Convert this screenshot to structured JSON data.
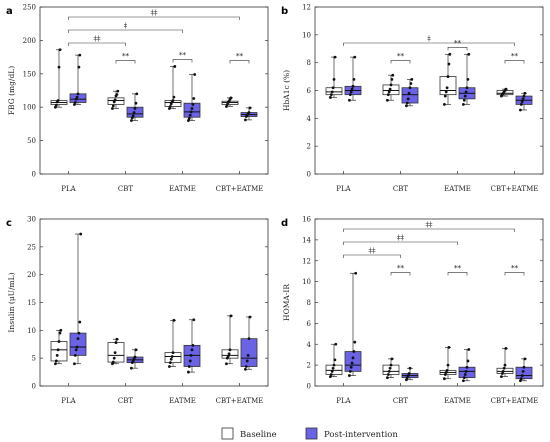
{
  "colors": {
    "baseline_fill": "#ffffff",
    "post_fill": "#6b63e6",
    "stroke": "#333333",
    "point": "#111111"
  },
  "legend": {
    "baseline_label": "Baseline",
    "post_label": "Post-intervention"
  },
  "chart_data": [
    {
      "type": "box",
      "panel": "a",
      "title": "",
      "ylabel": "FBG (mg/dL)",
      "ylim": [
        0,
        250
      ],
      "yticks": [
        0,
        50,
        100,
        150,
        200,
        250
      ],
      "categories": [
        "PLA",
        "CBT",
        "EATME",
        "CBT+EATME"
      ],
      "groups": [
        {
          "baseline": {
            "min": 100,
            "q1": 104,
            "median": 107,
            "q3": 110,
            "max": 186,
            "points": [
              100,
              103,
              108,
              110,
              160,
              186
            ]
          },
          "post": {
            "min": 104,
            "q1": 107,
            "median": 112,
            "q3": 120,
            "max": 178,
            "points": [
              104,
              107,
              112,
              115,
              120,
              160,
              178
            ]
          }
        },
        {
          "baseline": {
            "min": 98,
            "q1": 104,
            "median": 110,
            "q3": 114,
            "max": 124,
            "points": [
              98,
              102,
              108,
              111,
              117,
              119,
              124
            ]
          },
          "post": {
            "min": 80,
            "q1": 85,
            "median": 90,
            "q3": 100,
            "max": 120,
            "points": [
              80,
              84,
              87,
              92,
              98,
              106,
              120
            ]
          }
        },
        {
          "baseline": {
            "min": 98,
            "q1": 101,
            "median": 107,
            "q3": 110,
            "max": 161,
            "points": [
              98,
              101,
              105,
              108,
              110,
              115,
              161
            ]
          },
          "post": {
            "min": 80,
            "q1": 85,
            "median": 93,
            "q3": 106,
            "max": 149,
            "points": [
              80,
              83,
              88,
              93,
              98,
              104,
              113,
              149
            ]
          }
        },
        {
          "baseline": {
            "min": 101,
            "q1": 104,
            "median": 107,
            "q3": 109,
            "max": 114,
            "points": [
              101,
              104,
              107,
              109,
              112,
              114
            ]
          },
          "post": {
            "min": 81,
            "q1": 86,
            "median": 89,
            "q3": 92,
            "max": 99,
            "points": [
              81,
              86,
              88,
              90,
              92,
              99
            ]
          }
        }
      ],
      "annotations": [
        {
          "text": "‡‡",
          "from": "PLA",
          "to": "CBT+EATME",
          "level": 3
        },
        {
          "text": "‡",
          "from": "PLA",
          "to": "EATME",
          "level": 2
        },
        {
          "text": "‡‡",
          "from": "PLA",
          "to": "CBT",
          "level": 1
        },
        {
          "text": "**",
          "group": "CBT"
        },
        {
          "text": "**",
          "group": "EATME"
        },
        {
          "text": "**",
          "group": "CBT+EATME"
        }
      ]
    },
    {
      "type": "box",
      "panel": "b",
      "title": "",
      "ylabel": "HbA1c (%)",
      "ylim": [
        0,
        12
      ],
      "yticks": [
        0,
        2,
        4,
        6,
        8,
        10,
        12
      ],
      "categories": [
        "PLA",
        "CBT",
        "EATME",
        "CBT+EATME"
      ],
      "groups": [
        {
          "baseline": {
            "min": 5.5,
            "q1": 5.7,
            "median": 5.9,
            "q3": 6.2,
            "max": 8.4,
            "points": [
              5.5,
              5.7,
              5.9,
              6.2,
              6.8,
              8.4
            ]
          },
          "post": {
            "min": 5.3,
            "q1": 5.7,
            "median": 6.0,
            "q3": 6.3,
            "max": 8.4,
            "points": [
              5.3,
              5.7,
              5.9,
              6.1,
              6.3,
              6.8,
              8.4
            ]
          }
        },
        {
          "baseline": {
            "min": 5.3,
            "q1": 5.7,
            "median": 6.0,
            "q3": 6.4,
            "max": 7.1,
            "points": [
              5.3,
              5.7,
              5.9,
              6.1,
              6.4,
              6.8,
              7.1
            ]
          },
          "post": {
            "min": 4.9,
            "q1": 5.1,
            "median": 5.7,
            "q3": 6.2,
            "max": 6.8,
            "points": [
              4.9,
              5.1,
              5.4,
              5.8,
              6.2,
              6.5,
              6.8
            ]
          }
        },
        {
          "baseline": {
            "min": 5.0,
            "q1": 5.7,
            "median": 6.0,
            "q3": 7.0,
            "max": 8.6,
            "points": [
              5.0,
              5.6,
              5.9,
              6.2,
              7.0,
              7.9,
              8.6
            ]
          },
          "post": {
            "min": 5.0,
            "q1": 5.4,
            "median": 5.8,
            "q3": 6.2,
            "max": 8.6,
            "points": [
              5.0,
              5.3,
              5.6,
              5.9,
              6.2,
              6.8,
              8.6
            ]
          }
        },
        {
          "baseline": {
            "min": 5.6,
            "q1": 5.7,
            "median": 5.8,
            "q3": 6.0,
            "max": 6.1,
            "points": [
              5.6,
              5.7,
              5.8,
              5.9,
              6.0,
              6.1
            ]
          },
          "post": {
            "min": 4.6,
            "q1": 5.0,
            "median": 5.3,
            "q3": 5.6,
            "max": 5.8,
            "points": [
              4.6,
              5.0,
              5.2,
              5.4,
              5.6,
              5.8
            ]
          }
        }
      ],
      "annotations": [
        {
          "text": "‡",
          "from": "PLA",
          "to": "CBT+EATME",
          "level": 1
        },
        {
          "text": "**",
          "group": "CBT"
        },
        {
          "text": "**",
          "group": "EATME"
        },
        {
          "text": "**",
          "group": "CBT+EATME"
        }
      ]
    },
    {
      "type": "box",
      "panel": "c",
      "title": "",
      "ylabel": "Insulin (μU/mL)",
      "ylim": [
        0,
        30
      ],
      "yticks": [
        0,
        5,
        10,
        15,
        20,
        25,
        30
      ],
      "categories": [
        "PLA",
        "CBT",
        "EATME",
        "CBT+EATME"
      ],
      "groups": [
        {
          "baseline": {
            "min": 4.0,
            "q1": 4.5,
            "median": 6.5,
            "q3": 8.0,
            "max": 10.0,
            "points": [
              4.0,
              4.5,
              5.5,
              6.5,
              8.0,
              9.5,
              10.0
            ]
          },
          "post": {
            "min": 4.0,
            "q1": 5.5,
            "median": 7.0,
            "q3": 9.5,
            "max": 27.3,
            "points": [
              4.0,
              5.5,
              6.5,
              7.0,
              8.5,
              9.5,
              11.5,
              27.3
            ]
          }
        },
        {
          "baseline": {
            "min": 4.0,
            "q1": 4.3,
            "median": 5.5,
            "q3": 7.8,
            "max": 8.4,
            "points": [
              4.0,
              4.3,
              5.0,
              6.0,
              7.8,
              8.4
            ]
          },
          "post": {
            "min": 3.2,
            "q1": 4.2,
            "median": 4.7,
            "q3": 5.2,
            "max": 6.5,
            "points": [
              3.2,
              4.2,
              4.5,
              4.9,
              5.2,
              6.5
            ]
          }
        },
        {
          "baseline": {
            "min": 3.5,
            "q1": 4.2,
            "median": 5.3,
            "q3": 6.0,
            "max": 11.8,
            "points": [
              3.5,
              4.2,
              4.8,
              5.3,
              6.0,
              11.8
            ]
          },
          "post": {
            "min": 2.5,
            "q1": 3.5,
            "median": 5.5,
            "q3": 7.3,
            "max": 11.9,
            "points": [
              2.5,
              3.5,
              4.5,
              5.5,
              6.5,
              7.3,
              11.9
            ]
          }
        },
        {
          "baseline": {
            "min": 4.0,
            "q1": 5.0,
            "median": 5.5,
            "q3": 6.5,
            "max": 12.6,
            "points": [
              4.0,
              5.0,
              5.3,
              5.8,
              6.5,
              12.6
            ]
          },
          "post": {
            "min": 3.0,
            "q1": 3.5,
            "median": 5.0,
            "q3": 8.5,
            "max": 12.4,
            "points": [
              3.0,
              3.5,
              4.5,
              5.5,
              8.5,
              12.4
            ]
          }
        }
      ],
      "annotations": []
    },
    {
      "type": "box",
      "panel": "d",
      "title": "",
      "ylabel": "HOMA-IR",
      "ylim": [
        0,
        16
      ],
      "yticks": [
        0,
        2,
        4,
        6,
        8,
        10,
        12,
        14,
        16
      ],
      "categories": [
        "PLA",
        "CBT",
        "EATME",
        "CBT+EATME"
      ],
      "groups": [
        {
          "baseline": {
            "min": 0.9,
            "q1": 1.1,
            "median": 1.5,
            "q3": 2.0,
            "max": 4.0,
            "points": [
              0.9,
              1.1,
              1.4,
              1.7,
              2.0,
              2.5,
              4.0
            ]
          },
          "post": {
            "min": 1.0,
            "q1": 1.4,
            "median": 2.0,
            "q3": 3.3,
            "max": 10.8,
            "points": [
              1.0,
              1.4,
              1.8,
              2.2,
              2.7,
              3.3,
              4.2,
              10.8
            ]
          }
        },
        {
          "baseline": {
            "min": 0.8,
            "q1": 1.1,
            "median": 1.4,
            "q3": 2.0,
            "max": 2.6,
            "points": [
              0.8,
              1.1,
              1.4,
              1.7,
              2.0,
              2.6
            ]
          },
          "post": {
            "min": 0.6,
            "q1": 0.8,
            "median": 1.0,
            "q3": 1.2,
            "max": 1.7,
            "points": [
              0.6,
              0.8,
              1.0,
              1.2,
              1.7
            ]
          }
        },
        {
          "baseline": {
            "min": 0.7,
            "q1": 1.1,
            "median": 1.3,
            "q3": 1.5,
            "max": 3.7,
            "points": [
              0.7,
              1.1,
              1.3,
              1.5,
              2.0,
              3.7
            ]
          },
          "post": {
            "min": 0.5,
            "q1": 0.8,
            "median": 1.4,
            "q3": 1.8,
            "max": 3.5,
            "points": [
              0.5,
              0.8,
              1.1,
              1.4,
              1.8,
              2.4,
              3.5
            ]
          }
        },
        {
          "baseline": {
            "min": 0.9,
            "q1": 1.2,
            "median": 1.4,
            "q3": 1.7,
            "max": 3.6,
            "points": [
              0.9,
              1.2,
              1.4,
              1.7,
              2.0,
              3.6
            ]
          },
          "post": {
            "min": 0.5,
            "q1": 0.7,
            "median": 1.0,
            "q3": 1.8,
            "max": 2.6,
            "points": [
              0.5,
              0.7,
              1.0,
              1.4,
              1.8,
              2.6
            ]
          }
        }
      ],
      "annotations": [
        {
          "text": "‡‡",
          "from": "PLA",
          "to": "CBT+EATME",
          "level": 3
        },
        {
          "text": "‡‡",
          "from": "PLA",
          "to": "EATME",
          "level": 2
        },
        {
          "text": "‡‡",
          "from": "PLA",
          "to": "CBT",
          "level": 1
        },
        {
          "text": "**",
          "group": "CBT"
        },
        {
          "text": "**",
          "group": "EATME"
        },
        {
          "text": "**",
          "group": "CBT+EATME"
        }
      ]
    }
  ]
}
